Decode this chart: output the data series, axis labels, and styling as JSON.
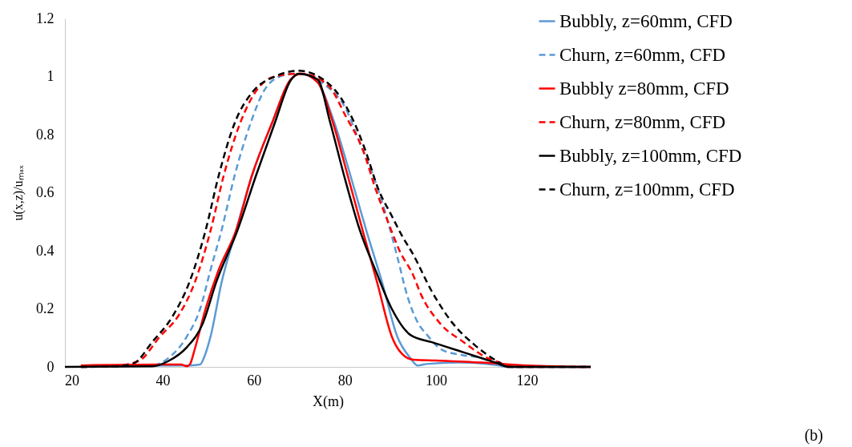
{
  "chart_data": {
    "type": "line",
    "xlabel": "X(m)",
    "ylabel": "u(x,z)/uₘₐₓ",
    "annotations": [
      "(b)"
    ],
    "xlim": [
      18.5,
      134
    ],
    "xticks": [
      20,
      40,
      60,
      80,
      100,
      120
    ],
    "ylim": [
      0,
      1.2
    ],
    "yticks": [
      0,
      0.2,
      0.4,
      0.6,
      0.8,
      1,
      1.2
    ],
    "grid": false,
    "legend": "top right",
    "marker": "none",
    "series": [
      {
        "name": "Bubbly, z=60mm, CFD",
        "color": "#5b9bd5",
        "line_style": "solid",
        "x": [
          22,
          40,
          46,
          48.2,
          49,
          50.5,
          52.9,
          56.1,
          59.6,
          64,
          68.1,
          70.4,
          74,
          77.7,
          81.2,
          84.7,
          88.2,
          91.5,
          94.4,
          96,
          98,
          105,
          110,
          116,
          134
        ],
        "values": [
          0.005,
          0.005,
          0.005,
          0.008,
          0.03,
          0.105,
          0.29,
          0.47,
          0.66,
          0.84,
          0.99,
          1.01,
          0.98,
          0.84,
          0.66,
          0.47,
          0.29,
          0.105,
          0.03,
          0.005,
          0.01,
          0.015,
          0.012,
          0.003,
          0
        ]
      },
      {
        "name": "Churn, z=60mm, CFD",
        "color": "#5b9bd5",
        "line_style": "dashed",
        "x": [
          22,
          37.7,
          41.2,
          45.3,
          48.2,
          50.5,
          52.9,
          55.8,
          59.3,
          62.2,
          65.7,
          69.2,
          75.7,
          80.3,
          83.3,
          86.2,
          89.1,
          91.5,
          93.8,
          96.1,
          97.9,
          101.4,
          106,
          110.2,
          113,
          116,
          134
        ],
        "values": [
          0,
          0.005,
          0.03,
          0.105,
          0.2,
          0.335,
          0.47,
          0.66,
          0.84,
          0.95,
          1.0,
          1.01,
          0.97,
          0.886,
          0.77,
          0.66,
          0.52,
          0.38,
          0.24,
          0.15,
          0.113,
          0.058,
          0.04,
          0.03,
          0.01,
          0,
          0
        ]
      },
      {
        "name": "Bubbly z=80mm, CFD",
        "color": "#ff0000",
        "line_style": "solid",
        "x": [
          22,
          40,
          44,
          45.3,
          46,
          47,
          49.4,
          52.3,
          56.1,
          59.6,
          64,
          68.1,
          70.4,
          74,
          77.4,
          80.6,
          83.9,
          87.1,
          90.3,
          93.8,
          95,
          100,
          110,
          120,
          134
        ],
        "values": [
          0.005,
          0.008,
          0.008,
          0.002,
          0.01,
          0.06,
          0.2,
          0.335,
          0.47,
          0.66,
          0.84,
          0.99,
          1.01,
          0.98,
          0.84,
          0.66,
          0.47,
          0.29,
          0.105,
          0.03,
          0.025,
          0.022,
          0.015,
          0.005,
          0
        ]
      },
      {
        "name": "Churn, z=80mm, CFD",
        "color": "#ff0000",
        "line_style": "dashed",
        "x": [
          22,
          30,
          34.7,
          39.4,
          43.5,
          47,
          50.5,
          53.4,
          57,
          60.5,
          64.6,
          70.4,
          76.3,
          80.3,
          83.9,
          86.8,
          89.7,
          92,
          95,
          96.7,
          100.9,
          106.1,
          111.4,
          114.2,
          117,
          134
        ],
        "values": [
          0,
          0.005,
          0.02,
          0.105,
          0.178,
          0.29,
          0.47,
          0.66,
          0.84,
          0.95,
          1.0,
          1.01,
          0.97,
          0.86,
          0.75,
          0.61,
          0.49,
          0.4,
          0.316,
          0.25,
          0.15,
          0.085,
          0.03,
          0.014,
          0,
          0
        ]
      },
      {
        "name": "Bubbly, z=100mm, CFD",
        "color": "#000000",
        "line_style": "solid",
        "x": [
          18.5,
          37.7,
          41.2,
          45.3,
          48.8,
          51.7,
          56.4,
          60.5,
          64.6,
          68.1,
          69.8,
          74,
          76.8,
          79.8,
          83.3,
          86.8,
          90.3,
          94.4,
          99.1,
          106.1,
          113.2,
          116,
          134
        ],
        "values": [
          0,
          0.002,
          0.02,
          0.068,
          0.15,
          0.29,
          0.47,
          0.66,
          0.84,
          0.987,
          1.01,
          0.99,
          0.84,
          0.66,
          0.47,
          0.33,
          0.2,
          0.11,
          0.085,
          0.05,
          0.014,
          0,
          0
        ]
      },
      {
        "name": "Churn, z=100mm, CFD",
        "color": "#000000",
        "line_style": "dashed",
        "x": [
          22,
          30.1,
          33.6,
          37.7,
          42.3,
          45.8,
          49.4,
          52.3,
          55.8,
          59.9,
          64.6,
          69.8,
          76.8,
          81.5,
          84.4,
          87.4,
          90.3,
          92.6,
          94.9,
          99.1,
          103.7,
          108.4,
          113.2,
          116,
          134
        ],
        "values": [
          0,
          0.002,
          0.012,
          0.086,
          0.178,
          0.29,
          0.47,
          0.66,
          0.84,
          0.95,
          1.0,
          1.02,
          0.97,
          0.86,
          0.75,
          0.61,
          0.52,
          0.45,
          0.39,
          0.26,
          0.15,
          0.077,
          0.022,
          0,
          0
        ]
      }
    ]
  }
}
